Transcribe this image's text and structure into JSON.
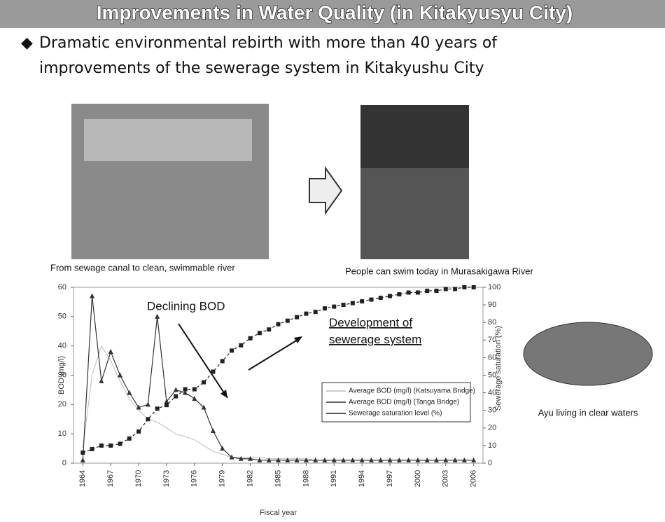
{
  "header": {
    "title": "Improvements in Water Quality (in Kitakyusyu City)"
  },
  "bullet": {
    "line1": "Dramatic environmental rebirth with more than 40 years of",
    "line2": "improvements of the sewerage system in Kitakyushu City"
  },
  "captions": {
    "before": "From sewage canal to clean, swimmable river",
    "after": "People can swim today in Murasakigawa River",
    "ayu": "Ayu living in clear waters"
  },
  "chart_data": {
    "type": "line",
    "xlabel": "Fiscal year",
    "ylabel": "BOD (mg/l)",
    "y2label": "Sewerage saturation (%)",
    "annotations": [
      "Declining BOD",
      "Development of sewerage system"
    ],
    "x": [
      1964,
      1965,
      1966,
      1967,
      1968,
      1969,
      1970,
      1971,
      1972,
      1973,
      1974,
      1975,
      1976,
      1977,
      1978,
      1979,
      1980,
      1981,
      1982,
      1983,
      1984,
      1985,
      1986,
      1987,
      1988,
      1989,
      1990,
      1991,
      1992,
      1993,
      1994,
      1995,
      1996,
      1997,
      1998,
      1999,
      2000,
      2001,
      2002,
      2003,
      2004,
      2005,
      2006
    ],
    "xlim": [
      1963,
      2007
    ],
    "xticks": [
      1964,
      1967,
      1970,
      1973,
      1976,
      1979,
      1982,
      1985,
      1988,
      1991,
      1994,
      1997,
      2000,
      2003,
      2006
    ],
    "ylim": [
      0,
      60
    ],
    "yticks": [
      0,
      10,
      20,
      30,
      40,
      50,
      60
    ],
    "y2lim": [
      0,
      100
    ],
    "y2ticks": [
      0,
      10,
      20,
      30,
      40,
      50,
      60,
      70,
      80,
      90,
      100
    ],
    "series": [
      {
        "name": "Average BOD (mg/l) (Katsuyama Bridge)",
        "color": "#bbbbbb",
        "marker": "none",
        "values": [
          5,
          30,
          40,
          35,
          28,
          22,
          18,
          15,
          14,
          12,
          10,
          9,
          8,
          6,
          4,
          3,
          2,
          2,
          2,
          2,
          1.5,
          1.5,
          1.5,
          1.5,
          1.5,
          1,
          1,
          1,
          1,
          1,
          1,
          1,
          1,
          1,
          1,
          1,
          1,
          1,
          1,
          1,
          1,
          1,
          1
        ]
      },
      {
        "name": "Average BOD (mg/l) (Tanga Bridge)",
        "color": "#333333",
        "marker": "triangle",
        "values": [
          1,
          57,
          28,
          38,
          30,
          24,
          19,
          20,
          50,
          21,
          25,
          24,
          22,
          19,
          11,
          5,
          2,
          1.5,
          1.5,
          1,
          1,
          1,
          1,
          1,
          1,
          1,
          1,
          1,
          1,
          1,
          1,
          1,
          1,
          1,
          1,
          1,
          1,
          1,
          1,
          1,
          1,
          1,
          1
        ]
      },
      {
        "name": "Sewerage saturation level (%)",
        "color": "#222222",
        "marker": "square",
        "axis": "y2",
        "values": [
          6,
          8,
          10,
          10,
          11,
          14,
          18,
          25,
          31,
          33,
          38,
          42,
          42,
          46,
          52,
          58,
          64,
          67,
          71,
          74,
          76,
          79,
          81,
          83,
          85,
          86,
          88,
          89,
          90,
          91,
          92,
          93,
          94,
          95,
          96,
          97,
          97,
          98,
          98,
          99,
          99,
          100,
          100
        ]
      }
    ]
  }
}
